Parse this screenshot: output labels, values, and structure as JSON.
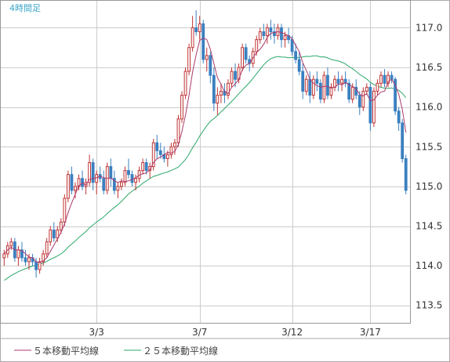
{
  "chart_data": {
    "type": "candlestick",
    "timeframe_label": "4時間足",
    "y_ticks": [
      "117.0",
      "116.5",
      "116.0",
      "115.5",
      "115.0",
      "114.5",
      "114.0",
      "113.5"
    ],
    "y_tick_values": [
      117.0,
      116.5,
      116.0,
      115.5,
      115.0,
      114.5,
      114.0,
      113.5
    ],
    "ylim": [
      113.28,
      117.35
    ],
    "x_ticks": [
      {
        "label": "3/3",
        "index": 26
      },
      {
        "label": "3/7",
        "index": 55
      },
      {
        "label": "3/12",
        "index": 81
      },
      {
        "label": "3/17",
        "index": 103
      }
    ],
    "grid": true,
    "legend_position": "bottom-left",
    "colors": {
      "up": "#c03434",
      "down": "#3a80c0",
      "ma5": "#aa3a6a",
      "ma25": "#2aa86a",
      "grid": "#cccccc",
      "axis": "#999999"
    },
    "legend": [
      {
        "key": "ma5",
        "label": "５本移動平均線",
        "color": "#aa3a6a"
      },
      {
        "key": "ma25",
        "label": "２５本移動平均線",
        "color": "#2aa86a"
      }
    ],
    "candles": [
      [
        114.1,
        114.2,
        114.0,
        114.15
      ],
      [
        114.15,
        114.3,
        114.1,
        114.25
      ],
      [
        114.25,
        114.35,
        114.2,
        114.3
      ],
      [
        114.3,
        114.35,
        114.05,
        114.1
      ],
      [
        114.1,
        114.25,
        114.0,
        114.2
      ],
      [
        114.2,
        114.3,
        114.05,
        114.1
      ],
      [
        114.1,
        114.2,
        114.0,
        114.05
      ],
      [
        114.05,
        114.15,
        113.95,
        114.1
      ],
      [
        114.1,
        114.15,
        114.0,
        114.05
      ],
      [
        114.05,
        114.1,
        113.85,
        113.95
      ],
      [
        113.95,
        114.1,
        113.9,
        114.05
      ],
      [
        114.05,
        114.2,
        114.0,
        114.15
      ],
      [
        114.15,
        114.35,
        114.1,
        114.3
      ],
      [
        114.3,
        114.5,
        114.25,
        114.45
      ],
      [
        114.45,
        114.55,
        114.3,
        114.35
      ],
      [
        114.35,
        114.5,
        114.3,
        114.45
      ],
      [
        114.45,
        114.6,
        114.4,
        114.55
      ],
      [
        114.55,
        114.9,
        114.5,
        114.85
      ],
      [
        114.85,
        115.2,
        114.8,
        115.15
      ],
      [
        115.15,
        115.25,
        114.9,
        114.95
      ],
      [
        114.95,
        115.05,
        114.85,
        115.0
      ],
      [
        115.0,
        115.15,
        114.95,
        115.1
      ],
      [
        115.1,
        115.2,
        114.95,
        115.0
      ],
      [
        115.0,
        115.1,
        114.9,
        115.05
      ],
      [
        115.05,
        115.4,
        115.0,
        115.3
      ],
      [
        115.3,
        115.35,
        114.95,
        115.05
      ],
      [
        115.05,
        115.2,
        114.9,
        115.15
      ],
      [
        115.15,
        115.25,
        115.05,
        115.1
      ],
      [
        115.1,
        115.2,
        114.9,
        114.95
      ],
      [
        114.95,
        115.3,
        114.9,
        115.25
      ],
      [
        115.25,
        115.35,
        115.0,
        115.1
      ],
      [
        115.1,
        115.2,
        114.9,
        114.95
      ],
      [
        114.95,
        115.05,
        114.85,
        115.0
      ],
      [
        115.0,
        115.1,
        114.95,
        115.05
      ],
      [
        115.05,
        115.25,
        115.0,
        115.2
      ],
      [
        115.2,
        115.35,
        115.1,
        115.15
      ],
      [
        115.15,
        115.2,
        115.0,
        115.05
      ],
      [
        115.05,
        115.15,
        114.95,
        115.1
      ],
      [
        115.1,
        115.25,
        115.05,
        115.2
      ],
      [
        115.2,
        115.35,
        115.15,
        115.3
      ],
      [
        115.3,
        115.35,
        115.15,
        115.2
      ],
      [
        115.2,
        115.3,
        115.1,
        115.25
      ],
      [
        115.25,
        115.6,
        115.2,
        115.55
      ],
      [
        115.55,
        115.65,
        115.35,
        115.45
      ],
      [
        115.45,
        115.55,
        115.35,
        115.4
      ],
      [
        115.4,
        115.5,
        115.3,
        115.35
      ],
      [
        115.35,
        115.45,
        115.25,
        115.4
      ],
      [
        115.4,
        115.55,
        115.35,
        115.5
      ],
      [
        115.5,
        115.6,
        115.4,
        115.55
      ],
      [
        115.55,
        115.9,
        115.5,
        115.85
      ],
      [
        115.85,
        116.2,
        115.8,
        116.15
      ],
      [
        116.15,
        116.5,
        116.1,
        116.45
      ],
      [
        116.45,
        116.8,
        116.4,
        116.75
      ],
      [
        116.75,
        117.15,
        116.7,
        117.0
      ],
      [
        117.0,
        117.22,
        116.9,
        116.95
      ],
      [
        116.95,
        117.15,
        116.85,
        117.05
      ],
      [
        117.05,
        117.1,
        116.55,
        116.6
      ],
      [
        116.6,
        116.75,
        116.45,
        116.65
      ],
      [
        116.65,
        116.7,
        116.3,
        116.4
      ],
      [
        116.4,
        116.5,
        115.95,
        116.05
      ],
      [
        116.05,
        116.25,
        115.9,
        116.15
      ],
      [
        116.15,
        116.3,
        116.05,
        116.2
      ],
      [
        116.2,
        116.3,
        116.05,
        116.15
      ],
      [
        116.15,
        116.35,
        116.1,
        116.3
      ],
      [
        116.3,
        116.5,
        116.25,
        116.45
      ],
      [
        116.45,
        116.55,
        116.25,
        116.35
      ],
      [
        116.35,
        116.55,
        116.3,
        116.5
      ],
      [
        116.5,
        116.8,
        116.45,
        116.75
      ],
      [
        116.75,
        116.8,
        116.55,
        116.6
      ],
      [
        116.6,
        116.65,
        116.45,
        116.55
      ],
      [
        116.55,
        116.75,
        116.5,
        116.7
      ],
      [
        116.7,
        116.9,
        116.65,
        116.85
      ],
      [
        116.85,
        117.0,
        116.8,
        116.95
      ],
      [
        116.95,
        117.05,
        116.85,
        116.9
      ],
      [
        116.9,
        117.05,
        116.8,
        117.0
      ],
      [
        117.0,
        117.1,
        116.85,
        116.95
      ],
      [
        116.95,
        117.05,
        116.8,
        116.9
      ],
      [
        116.9,
        117.05,
        116.85,
        117.0
      ],
      [
        117.0,
        117.05,
        116.75,
        116.85
      ],
      [
        116.85,
        116.95,
        116.75,
        116.9
      ],
      [
        116.9,
        117.0,
        116.8,
        116.85
      ],
      [
        116.85,
        116.9,
        116.65,
        116.7
      ],
      [
        116.7,
        116.8,
        116.55,
        116.6
      ],
      [
        116.6,
        116.7,
        116.4,
        116.45
      ],
      [
        116.45,
        116.55,
        116.1,
        116.2
      ],
      [
        116.2,
        116.4,
        116.15,
        116.35
      ],
      [
        116.35,
        116.45,
        116.05,
        116.15
      ],
      [
        116.15,
        116.4,
        116.1,
        116.35
      ],
      [
        116.35,
        116.45,
        116.2,
        116.3
      ],
      [
        116.3,
        116.35,
        116.05,
        116.1
      ],
      [
        116.1,
        116.45,
        116.05,
        116.4
      ],
      [
        116.4,
        116.5,
        116.1,
        116.15
      ],
      [
        116.15,
        116.3,
        116.1,
        116.25
      ],
      [
        116.25,
        116.4,
        116.2,
        116.35
      ],
      [
        116.35,
        116.45,
        116.2,
        116.3
      ],
      [
        116.3,
        116.4,
        116.2,
        116.35
      ],
      [
        116.35,
        116.45,
        116.25,
        116.3
      ],
      [
        116.3,
        116.35,
        116.05,
        116.1
      ],
      [
        116.1,
        116.3,
        116.05,
        116.25
      ],
      [
        116.25,
        116.35,
        116.1,
        116.15
      ],
      [
        116.15,
        116.2,
        115.9,
        116.0
      ],
      [
        116.0,
        116.25,
        115.95,
        116.2
      ],
      [
        116.2,
        116.3,
        116.15,
        116.25
      ],
      [
        116.25,
        116.3,
        115.7,
        115.8
      ],
      [
        115.8,
        116.25,
        115.75,
        116.2
      ],
      [
        116.2,
        116.35,
        116.15,
        116.3
      ],
      [
        116.3,
        116.45,
        116.25,
        116.4
      ],
      [
        116.4,
        116.48,
        116.25,
        116.3
      ],
      [
        116.3,
        116.45,
        116.25,
        116.4
      ],
      [
        116.4,
        116.45,
        116.3,
        116.35
      ],
      [
        116.35,
        116.38,
        115.9,
        115.95
      ],
      [
        115.95,
        116.0,
        115.7,
        115.8
      ],
      [
        115.8,
        115.85,
        115.3,
        115.35
      ],
      [
        115.35,
        115.4,
        114.9,
        114.95
      ]
    ],
    "ma5_visible_from": 0,
    "ma25_start": 113.45
  }
}
